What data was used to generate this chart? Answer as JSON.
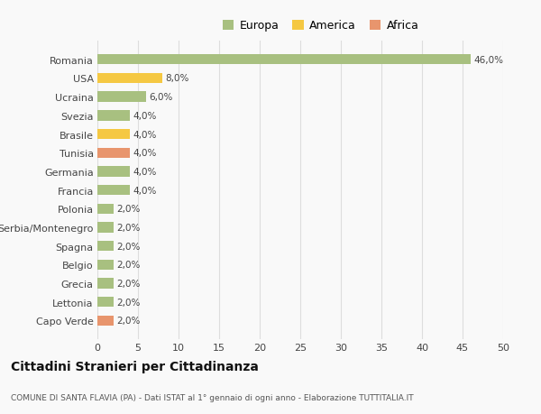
{
  "countries": [
    "Romania",
    "USA",
    "Ucraina",
    "Svezia",
    "Brasile",
    "Tunisia",
    "Germania",
    "Francia",
    "Polonia",
    "Serbia/Montenegro",
    "Spagna",
    "Belgio",
    "Grecia",
    "Lettonia",
    "Capo Verde"
  ],
  "values": [
    46.0,
    8.0,
    6.0,
    4.0,
    4.0,
    4.0,
    4.0,
    4.0,
    2.0,
    2.0,
    2.0,
    2.0,
    2.0,
    2.0,
    2.0
  ],
  "colors": [
    "#a8c080",
    "#f5c842",
    "#a8c080",
    "#a8c080",
    "#f5c842",
    "#e8956d",
    "#a8c080",
    "#a8c080",
    "#a8c080",
    "#a8c080",
    "#a8c080",
    "#a8c080",
    "#a8c080",
    "#a8c080",
    "#e8956d"
  ],
  "legend_labels": [
    "Europa",
    "America",
    "Africa"
  ],
  "legend_colors": [
    "#a8c080",
    "#f5c842",
    "#e8956d"
  ],
  "title1": "Cittadini Stranieri per Cittadinanza",
  "title2": "COMUNE DI SANTA FLAVIA (PA) - Dati ISTAT al 1° gennaio di ogni anno - Elaborazione TUTTITALIA.IT",
  "xlim": [
    0,
    50
  ],
  "xticks": [
    0,
    5,
    10,
    15,
    20,
    25,
    30,
    35,
    40,
    45,
    50
  ],
  "bg_color": "#f9f9f9",
  "grid_color": "#dddddd"
}
